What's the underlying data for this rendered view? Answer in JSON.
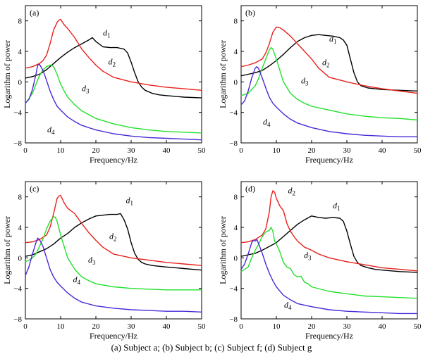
{
  "caption": "(a) Subject a; (b) Subject b; (c) Subject f; (d) Subject g",
  "colors": {
    "d1": "#000000",
    "d2": "#e8201a",
    "d3": "#22e02c",
    "d4": "#4a28d8"
  },
  "chart_data": [
    {
      "type": "line",
      "panel_label": "(a)",
      "xlabel": "Frequency/Hz",
      "ylabel": "Logarithm of power",
      "xlim": [
        0,
        50
      ],
      "ylim": [
        -8,
        10
      ],
      "xticks": [
        0,
        10,
        20,
        30,
        40,
        50
      ],
      "yticks": [
        -8,
        -4,
        0,
        4,
        8
      ],
      "grid": false,
      "legend": "inline-labels",
      "series": [
        {
          "name": "d1",
          "label_main": "d",
          "label_sub": "1",
          "label_at": [
            22,
            6.1
          ],
          "x": [
            0,
            2,
            4,
            6,
            8,
            10,
            12,
            14,
            16,
            18,
            19,
            20,
            22,
            24,
            26,
            28,
            29,
            30,
            31,
            32,
            33,
            34,
            36,
            38,
            40,
            45,
            50
          ],
          "y": [
            0.5,
            0.7,
            1.0,
            1.6,
            2.4,
            3.2,
            3.9,
            4.5,
            5.0,
            5.5,
            5.8,
            5.3,
            4.6,
            4.5,
            4.5,
            4.3,
            3.8,
            2.6,
            1.2,
            0.0,
            -0.7,
            -1.1,
            -1.5,
            -1.7,
            -1.8,
            -2.0,
            -2.1
          ]
        },
        {
          "name": "d2",
          "label_main": "d",
          "label_sub": "2",
          "label_at": [
            23.5,
            2.3
          ],
          "x": [
            0,
            2,
            4,
            5,
            6,
            7,
            8,
            9,
            9.5,
            10,
            11,
            12,
            14,
            16,
            18,
            20,
            22,
            25,
            30,
            35,
            40,
            45,
            50
          ],
          "y": [
            1.8,
            2.0,
            2.4,
            2.8,
            3.5,
            5.0,
            6.8,
            7.8,
            8.1,
            8.2,
            7.5,
            7.0,
            5.8,
            4.3,
            3.2,
            2.2,
            1.4,
            0.6,
            0.0,
            -0.4,
            -0.7,
            -0.9,
            -1.1
          ]
        },
        {
          "name": "d3",
          "label_main": "d",
          "label_sub": "3",
          "label_at": [
            16,
            -1.2
          ],
          "x": [
            0,
            1,
            2,
            3,
            4,
            5,
            6,
            7,
            7.5,
            8,
            9,
            10,
            11,
            12,
            14,
            16,
            18,
            20,
            25,
            30,
            35,
            40,
            45,
            50
          ],
          "y": [
            -2.8,
            -2.2,
            -1.5,
            -0.3,
            0.8,
            1.6,
            2.0,
            2.2,
            2.2,
            2.0,
            1.0,
            -0.3,
            -1.2,
            -2.0,
            -3.0,
            -3.8,
            -4.3,
            -4.8,
            -5.5,
            -6.0,
            -6.3,
            -6.5,
            -6.6,
            -6.7
          ]
        },
        {
          "name": "d4",
          "label_main": "d",
          "label_sub": "4",
          "label_at": [
            6.2,
            -6.6
          ],
          "x": [
            0,
            1,
            2,
            3,
            3.5,
            4,
            5,
            6,
            7,
            8,
            9,
            10,
            12,
            14,
            16,
            20,
            25,
            30,
            35,
            40,
            45,
            50
          ],
          "y": [
            -2.8,
            -2.3,
            -1.0,
            1.0,
            2.2,
            2.3,
            1.5,
            0.2,
            -1.2,
            -2.3,
            -3.2,
            -3.7,
            -4.6,
            -5.2,
            -5.7,
            -6.3,
            -6.8,
            -7.1,
            -7.3,
            -7.4,
            -7.5,
            -7.6
          ]
        }
      ]
    },
    {
      "type": "line",
      "panel_label": "(b)",
      "xlabel": "Frequency/Hz",
      "ylabel": "Logarithm of power",
      "xlim": [
        0,
        50
      ],
      "ylim": [
        -8,
        10
      ],
      "xticks": [
        0,
        10,
        20,
        30,
        40,
        50
      ],
      "yticks": [
        -8,
        -4,
        0,
        4,
        8
      ],
      "grid": false,
      "legend": "inline-labels",
      "series": [
        {
          "name": "d1",
          "label_main": "d",
          "label_sub": "1",
          "label_at": [
            25,
            5.3
          ],
          "x": [
            0,
            2,
            4,
            6,
            8,
            10,
            12,
            14,
            16,
            18,
            20,
            22,
            24,
            26,
            28,
            29,
            30,
            31,
            32,
            33,
            34,
            36,
            38,
            40,
            45,
            50
          ],
          "y": [
            0.8,
            1.0,
            1.2,
            1.5,
            2.1,
            2.8,
            3.6,
            4.5,
            5.3,
            5.8,
            6.1,
            6.2,
            6.1,
            6.0,
            5.8,
            5.5,
            4.8,
            3.0,
            1.2,
            0.0,
            -0.5,
            -0.8,
            -0.9,
            -1.0,
            -1.1,
            -1.2
          ]
        },
        {
          "name": "d2",
          "label_main": "d",
          "label_sub": "2",
          "label_at": [
            23,
            2.2
          ],
          "x": [
            0,
            2,
            4,
            6,
            7,
            8,
            9,
            10,
            11,
            12,
            14,
            16,
            18,
            20,
            22,
            25,
            30,
            35,
            40,
            45,
            50
          ],
          "y": [
            2.0,
            2.2,
            2.5,
            3.0,
            3.8,
            5.0,
            6.5,
            7.2,
            7.1,
            6.8,
            6.0,
            5.0,
            4.0,
            3.0,
            1.8,
            0.6,
            0.0,
            -0.5,
            -0.9,
            -1.2,
            -1.5
          ]
        },
        {
          "name": "d3",
          "label_main": "d",
          "label_sub": "3",
          "label_at": [
            17,
            -0.2
          ],
          "x": [
            0,
            2,
            4,
            5,
            6,
            7,
            8,
            8.5,
            9,
            10,
            11,
            12,
            14,
            16,
            18,
            20,
            25,
            30,
            35,
            40,
            45,
            50
          ],
          "y": [
            -1.8,
            -1.5,
            -0.5,
            0.5,
            1.8,
            3.0,
            4.2,
            4.5,
            4.3,
            3.0,
            1.5,
            0.0,
            -1.5,
            -2.3,
            -2.8,
            -3.2,
            -3.7,
            -4.2,
            -4.5,
            -4.7,
            -4.8,
            -5.0
          ]
        },
        {
          "name": "d4",
          "label_main": "d",
          "label_sub": "4",
          "label_at": [
            6.2,
            -5.6
          ],
          "x": [
            0,
            1,
            2,
            3,
            4,
            4.5,
            5,
            6,
            7,
            8,
            9,
            10,
            12,
            14,
            16,
            20,
            25,
            30,
            35,
            40,
            45,
            50
          ],
          "y": [
            -3.0,
            -2.5,
            -1.2,
            0.5,
            1.8,
            2.0,
            1.7,
            0.5,
            -0.8,
            -2.0,
            -2.8,
            -3.3,
            -4.2,
            -4.9,
            -5.4,
            -6.0,
            -6.5,
            -6.8,
            -7.0,
            -7.1,
            -7.2,
            -7.2
          ]
        }
      ]
    },
    {
      "type": "line",
      "panel_label": "(c)",
      "xlabel": "Frequency/Hz",
      "ylabel": "Logarithm of power",
      "xlim": [
        0,
        50
      ],
      "ylim": [
        -8,
        10
      ],
      "xticks": [
        0,
        10,
        20,
        30,
        40,
        50
      ],
      "yticks": [
        -8,
        -4,
        0,
        4,
        8
      ],
      "grid": false,
      "legend": "inline-labels",
      "series": [
        {
          "name": "d1",
          "label_main": "d",
          "label_sub": "1",
          "label_at": [
            28.5,
            7.2
          ],
          "x": [
            0,
            2,
            4,
            6,
            8,
            10,
            12,
            14,
            16,
            18,
            20,
            22,
            24,
            26,
            27,
            28,
            29,
            30,
            31,
            32,
            33,
            34,
            36,
            38,
            40,
            45,
            50
          ],
          "y": [
            0.2,
            0.4,
            0.8,
            1.2,
            1.8,
            2.6,
            3.2,
            4.0,
            4.6,
            5.1,
            5.5,
            5.6,
            5.7,
            5.7,
            5.8,
            5.0,
            3.8,
            2.0,
            0.6,
            -0.2,
            -0.6,
            -0.8,
            -1.0,
            -1.1,
            -1.2,
            -1.4,
            -1.6
          ]
        },
        {
          "name": "d2",
          "label_main": "d",
          "label_sub": "2",
          "label_at": [
            23.8,
            2.5
          ],
          "x": [
            0,
            2,
            4,
            6,
            7,
            8,
            9,
            9.5,
            10,
            11,
            12,
            14,
            16,
            18,
            20,
            22,
            25,
            30,
            35,
            40,
            45,
            50
          ],
          "y": [
            2.0,
            2.1,
            2.4,
            3.0,
            4.0,
            5.8,
            7.8,
            8.1,
            8.2,
            7.2,
            6.5,
            5.8,
            4.5,
            3.3,
            2.3,
            1.4,
            0.5,
            0.0,
            -0.3,
            -0.6,
            -0.8,
            -1.0
          ]
        },
        {
          "name": "d3",
          "label_main": "d",
          "label_sub": "3",
          "label_at": [
            17.8,
            -0.6
          ],
          "x": [
            0,
            1,
            2,
            3,
            4,
            5,
            6,
            7,
            8,
            8.5,
            9,
            10,
            11,
            12,
            14,
            16,
            18,
            20,
            25,
            30,
            35,
            40,
            45,
            50
          ],
          "y": [
            -0.5,
            -0.3,
            0.0,
            0.5,
            1.5,
            2.5,
            3.8,
            4.8,
            5.4,
            5.3,
            4.8,
            3.0,
            1.5,
            0.0,
            -1.5,
            -2.5,
            -3.0,
            -3.4,
            -3.8,
            -4.0,
            -4.1,
            -4.2,
            -4.2,
            -4.2
          ]
        },
        {
          "name": "d4",
          "label_main": "d",
          "label_sub": "4",
          "label_at": [
            13.5,
            -3.2
          ],
          "x": [
            0,
            1,
            2,
            3,
            3.5,
            4,
            5,
            6,
            7,
            8,
            9,
            10,
            12,
            14,
            16,
            20,
            25,
            30,
            35,
            40,
            45,
            50
          ],
          "y": [
            -2.3,
            -1.2,
            0.5,
            2.0,
            2.6,
            2.4,
            1.5,
            0.0,
            -1.5,
            -2.5,
            -3.2,
            -3.7,
            -4.6,
            -5.3,
            -5.8,
            -6.3,
            -6.6,
            -6.8,
            -6.9,
            -7.0,
            -7.0,
            -7.1
          ]
        }
      ]
    },
    {
      "type": "line",
      "panel_label": "(d)",
      "xlabel": "Frequency/Hz",
      "ylabel": "Logarithm of power",
      "xlim": [
        0,
        50
      ],
      "ylim": [
        -8,
        10
      ],
      "xticks": [
        0,
        10,
        20,
        30,
        40,
        50
      ],
      "yticks": [
        -8,
        -4,
        0,
        4,
        8
      ],
      "grid": false,
      "legend": "inline-labels",
      "series": [
        {
          "name": "d1",
          "label_main": "d",
          "label_sub": "1",
          "label_at": [
            26,
            6.5
          ],
          "x": [
            0,
            2,
            4,
            6,
            8,
            10,
            12,
            14,
            16,
            18,
            20,
            22,
            24,
            26,
            28,
            29,
            30,
            31,
            32,
            33,
            34,
            36,
            38,
            40,
            45,
            50
          ],
          "y": [
            0.2,
            0.4,
            0.6,
            1.0,
            1.5,
            2.0,
            2.8,
            3.6,
            4.4,
            5.0,
            5.5,
            5.3,
            5.2,
            5.3,
            5.2,
            4.8,
            3.5,
            1.8,
            0.2,
            -0.6,
            -1.0,
            -1.3,
            -1.5,
            -1.6,
            -1.8,
            -1.9
          ]
        },
        {
          "name": "d2",
          "label_main": "d",
          "label_sub": "2",
          "label_at": [
            13.3,
            8.5
          ],
          "x": [
            0,
            2,
            4,
            6,
            7,
            8,
            8.5,
            9,
            9.5,
            10,
            11,
            12,
            13,
            14,
            15,
            16,
            18,
            20,
            22,
            25,
            30,
            35,
            40,
            45,
            50
          ],
          "y": [
            2.0,
            2.1,
            2.4,
            3.0,
            3.8,
            6.0,
            8.0,
            8.8,
            8.6,
            7.8,
            6.8,
            6.2,
            4.5,
            3.5,
            2.8,
            2.2,
            1.4,
            1.0,
            0.5,
            0.0,
            -0.5,
            -0.9,
            -1.3,
            -1.5,
            -1.7
          ]
        },
        {
          "name": "d3",
          "label_main": "d",
          "label_sub": "3",
          "label_at": [
            17.8,
            0.0
          ],
          "x": [
            0,
            2,
            3,
            4,
            5,
            6,
            7,
            8,
            8.5,
            9,
            9.5,
            10,
            11,
            12,
            13,
            14,
            15,
            16,
            17,
            18,
            19,
            20,
            25,
            30,
            35,
            40,
            45,
            50
          ],
          "y": [
            -1.8,
            -1.2,
            0.0,
            1.0,
            1.8,
            2.8,
            3.4,
            3.6,
            4.0,
            3.5,
            2.2,
            1.8,
            0.8,
            -0.6,
            -1.2,
            -1.4,
            -2.2,
            -2.5,
            -2.4,
            -3.2,
            -3.4,
            -3.8,
            -4.4,
            -4.7,
            -5.0,
            -5.1,
            -5.2,
            -5.3
          ]
        },
        {
          "name": "d4",
          "label_main": "d",
          "label_sub": "4",
          "label_at": [
            12.2,
            -6.5
          ],
          "x": [
            0,
            1,
            2,
            3,
            3.5,
            4,
            4.5,
            5,
            6,
            7,
            8,
            9,
            10,
            12,
            14,
            16,
            20,
            25,
            30,
            35,
            40,
            45,
            50
          ],
          "y": [
            -1.5,
            -0.8,
            0.5,
            2.0,
            2.3,
            2.2,
            2.4,
            1.8,
            0.6,
            -0.8,
            -2.0,
            -3.0,
            -3.8,
            -4.9,
            -5.5,
            -6.0,
            -6.4,
            -6.8,
            -7.0,
            -7.1,
            -7.2,
            -7.3,
            -7.3
          ]
        }
      ]
    }
  ]
}
